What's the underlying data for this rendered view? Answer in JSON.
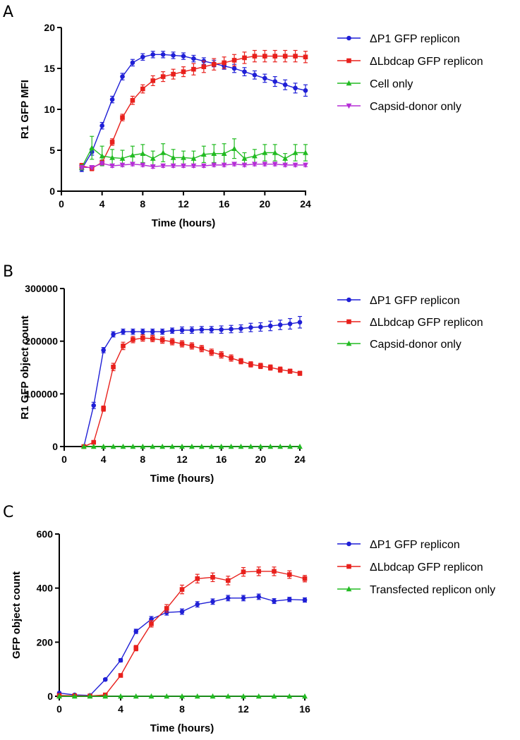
{
  "chart_data": [
    {
      "panel": "A",
      "type": "line",
      "xlabel": "Time (hours)",
      "ylabel": "R1 GFP MFI",
      "xlim": [
        0,
        24
      ],
      "ylim": [
        0,
        20
      ],
      "xticks": [
        "0",
        "4",
        "8",
        "12",
        "16",
        "20",
        "24"
      ],
      "yticks": [
        "0",
        "5",
        "10",
        "15",
        "20"
      ],
      "series": [
        {
          "name": "ΔP1 GFP replicon",
          "color": "#1f1fd6",
          "marker": "circle",
          "x": [
            2,
            3,
            4,
            5,
            6,
            7,
            8,
            9,
            10,
            11,
            12,
            13,
            14,
            15,
            16,
            17,
            18,
            19,
            20,
            21,
            22,
            23,
            24
          ],
          "y": [
            2.7,
            4.8,
            8.0,
            11.2,
            14.0,
            15.7,
            16.4,
            16.7,
            16.7,
            16.6,
            16.5,
            16.2,
            15.9,
            15.6,
            15.3,
            15.0,
            14.6,
            14.2,
            13.8,
            13.4,
            13.0,
            12.6,
            12.3
          ],
          "err": [
            0.3,
            0.4,
            0.4,
            0.4,
            0.4,
            0.4,
            0.4,
            0.4,
            0.4,
            0.4,
            0.4,
            0.4,
            0.4,
            0.4,
            0.4,
            0.5,
            0.5,
            0.5,
            0.5,
            0.6,
            0.6,
            0.6,
            0.7
          ]
        },
        {
          "name": "ΔLbdcap GFP replicon",
          "color": "#e8201c",
          "marker": "square",
          "x": [
            2,
            3,
            4,
            5,
            6,
            7,
            8,
            9,
            10,
            11,
            12,
            13,
            14,
            15,
            16,
            17,
            18,
            19,
            20,
            21,
            22,
            23,
            24
          ],
          "y": [
            3.1,
            2.8,
            3.5,
            6.0,
            9.0,
            11.1,
            12.5,
            13.5,
            14.0,
            14.3,
            14.6,
            14.9,
            15.2,
            15.5,
            15.7,
            16.0,
            16.3,
            16.5,
            16.5,
            16.5,
            16.5,
            16.5,
            16.4
          ],
          "err": [
            0.3,
            0.3,
            0.3,
            0.4,
            0.4,
            0.5,
            0.5,
            0.6,
            0.6,
            0.6,
            0.6,
            0.7,
            0.7,
            0.7,
            0.7,
            0.7,
            0.7,
            0.7,
            0.7,
            0.7,
            0.7,
            0.7,
            0.7
          ]
        },
        {
          "name": "Cell only",
          "color": "#22bb22",
          "marker": "triangle-up",
          "x": [
            2,
            3,
            4,
            5,
            6,
            7,
            8,
            9,
            10,
            11,
            12,
            13,
            14,
            15,
            16,
            17,
            18,
            19,
            20,
            21,
            22,
            23,
            24
          ],
          "y": [
            2.9,
            5.3,
            4.3,
            4.1,
            4.0,
            4.4,
            4.6,
            4.0,
            4.7,
            4.1,
            4.1,
            4.0,
            4.5,
            4.6,
            4.6,
            5.2,
            4.0,
            4.3,
            4.7,
            4.7,
            4.0,
            4.7,
            4.7
          ],
          "err": [
            0.3,
            1.4,
            1.2,
            1.0,
            1.0,
            1.1,
            1.1,
            0.9,
            1.1,
            1.0,
            0.8,
            0.9,
            1.0,
            1.1,
            1.2,
            1.2,
            0.7,
            0.8,
            1.0,
            1.0,
            0.6,
            1.0,
            1.0
          ]
        },
        {
          "name": "Capsid-donor only",
          "color": "#b52ed6",
          "marker": "triangle-down",
          "x": [
            2,
            3,
            4,
            5,
            6,
            7,
            8,
            9,
            10,
            11,
            12,
            13,
            14,
            15,
            16,
            17,
            18,
            19,
            20,
            21,
            22,
            23,
            24
          ],
          "y": [
            2.9,
            2.9,
            3.4,
            3.1,
            3.2,
            3.3,
            3.2,
            3.0,
            3.1,
            3.1,
            3.1,
            3.1,
            3.1,
            3.2,
            3.2,
            3.3,
            3.2,
            3.3,
            3.3,
            3.3,
            3.2,
            3.2,
            3.2
          ],
          "err": [
            0.2,
            0.2,
            0.2,
            0.2,
            0.2,
            0.2,
            0.2,
            0.2,
            0.2,
            0.2,
            0.2,
            0.2,
            0.2,
            0.2,
            0.2,
            0.2,
            0.2,
            0.2,
            0.2,
            0.2,
            0.2,
            0.2,
            0.2
          ]
        }
      ]
    },
    {
      "panel": "B",
      "type": "line",
      "xlabel": "Time (hours)",
      "ylabel": "R1 GFP object count",
      "xlim": [
        0,
        24
      ],
      "ylim": [
        0,
        300000
      ],
      "xticks": [
        "0",
        "4",
        "8",
        "12",
        "16",
        "20",
        "24"
      ],
      "yticks": [
        "0",
        "100000",
        "200000",
        "300000"
      ],
      "series": [
        {
          "name": "ΔP1 GFP replicon",
          "color": "#1f1fd6",
          "marker": "circle",
          "x": [
            2,
            3,
            4,
            5,
            6,
            7,
            8,
            9,
            10,
            11,
            12,
            13,
            14,
            15,
            16,
            17,
            18,
            19,
            20,
            21,
            22,
            23,
            24
          ],
          "y": [
            0,
            78000,
            183000,
            213000,
            218000,
            218000,
            218000,
            218000,
            218000,
            220000,
            221000,
            221000,
            222000,
            222000,
            222000,
            223000,
            224000,
            226000,
            227000,
            229000,
            231000,
            233000,
            236000
          ],
          "err": [
            0,
            6000,
            5000,
            5000,
            5000,
            5000,
            5000,
            5000,
            5000,
            5000,
            6000,
            6000,
            6000,
            6000,
            7000,
            7000,
            7000,
            8000,
            8000,
            9000,
            9000,
            10000,
            11000
          ]
        },
        {
          "name": "ΔLbdcap GFP replicon",
          "color": "#e8201c",
          "marker": "square",
          "x": [
            2,
            3,
            4,
            5,
            6,
            7,
            8,
            9,
            10,
            11,
            12,
            13,
            14,
            15,
            16,
            17,
            18,
            19,
            20,
            21,
            22,
            23,
            24
          ],
          "y": [
            0,
            8000,
            72000,
            151000,
            191000,
            203000,
            206000,
            205000,
            202000,
            199000,
            195000,
            191000,
            186000,
            179000,
            174000,
            168000,
            162000,
            156000,
            153000,
            150000,
            146000,
            143000,
            139000
          ],
          "err": [
            0,
            2000,
            5000,
            7000,
            7000,
            6000,
            6000,
            6000,
            6000,
            6000,
            6000,
            6000,
            6000,
            6000,
            6000,
            6000,
            5000,
            5000,
            5000,
            5000,
            5000,
            4000,
            4000
          ]
        },
        {
          "name": "Capsid-donor only",
          "color": "#22bb22",
          "marker": "triangle-up",
          "x": [
            2,
            3,
            4,
            5,
            6,
            7,
            8,
            9,
            10,
            11,
            12,
            13,
            14,
            15,
            16,
            17,
            18,
            19,
            20,
            21,
            22,
            23,
            24
          ],
          "y": [
            0,
            0,
            0,
            0,
            0,
            0,
            0,
            0,
            0,
            0,
            0,
            0,
            0,
            0,
            0,
            0,
            0,
            0,
            0,
            0,
            0,
            0,
            0
          ],
          "err": [
            0,
            0,
            0,
            0,
            0,
            0,
            0,
            0,
            0,
            0,
            0,
            0,
            0,
            0,
            0,
            0,
            0,
            0,
            0,
            0,
            0,
            0,
            0
          ]
        }
      ]
    },
    {
      "panel": "C",
      "type": "line",
      "xlabel": "Time (hours)",
      "ylabel": "GFP object count",
      "xlim": [
        0,
        16
      ],
      "ylim": [
        0,
        600
      ],
      "xticks": [
        "0",
        "4",
        "8",
        "12",
        "16"
      ],
      "yticks": [
        "0",
        "200",
        "400",
        "600"
      ],
      "series": [
        {
          "name": "ΔP1 GFP replicon",
          "color": "#1f1fd6",
          "marker": "circle",
          "x": [
            0,
            1,
            2,
            3,
            4,
            5,
            6,
            7,
            8,
            9,
            10,
            11,
            12,
            13,
            14,
            15,
            16
          ],
          "y": [
            12,
            5,
            3,
            62,
            133,
            240,
            285,
            310,
            313,
            340,
            350,
            363,
            363,
            368,
            352,
            358,
            356
          ],
          "err": [
            3,
            2,
            2,
            4,
            6,
            8,
            10,
            10,
            10,
            10,
            10,
            10,
            10,
            10,
            9,
            8,
            8
          ]
        },
        {
          "name": "ΔLbdcap GFP replicon",
          "color": "#e8201c",
          "marker": "square",
          "x": [
            0,
            1,
            2,
            3,
            4,
            5,
            6,
            7,
            8,
            9,
            10,
            11,
            12,
            13,
            14,
            15,
            16
          ],
          "y": [
            3,
            2,
            1,
            5,
            77,
            178,
            268,
            325,
            395,
            435,
            440,
            428,
            460,
            462,
            462,
            450,
            435
          ],
          "err": [
            2,
            2,
            2,
            3,
            6,
            10,
            12,
            14,
            16,
            16,
            16,
            16,
            16,
            16,
            16,
            14,
            12
          ]
        },
        {
          "name": "Transfected replicon only",
          "color": "#22bb22",
          "marker": "triangle-up",
          "x": [
            0,
            1,
            2,
            3,
            4,
            5,
            6,
            7,
            8,
            9,
            10,
            11,
            12,
            13,
            14,
            15,
            16
          ],
          "y": [
            0,
            0,
            0,
            0,
            0,
            0,
            0,
            0,
            0,
            0,
            0,
            0,
            0,
            0,
            0,
            0,
            0
          ],
          "err": [
            0,
            0,
            0,
            0,
            0,
            0,
            0,
            0,
            0,
            0,
            0,
            0,
            0,
            0,
            0,
            0,
            0
          ]
        }
      ]
    }
  ]
}
